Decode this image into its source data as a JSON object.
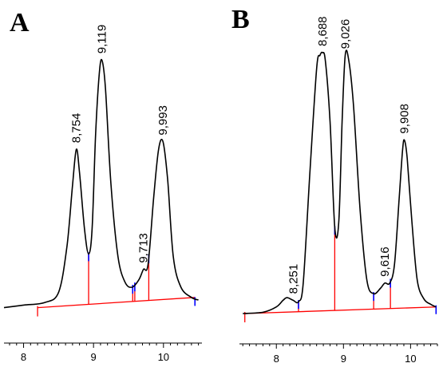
{
  "panels": [
    {
      "letter": "A",
      "chart_data": {
        "type": "line",
        "title": "",
        "xlabel": "",
        "ylabel": "",
        "xlim": [
          7.72,
          10.55
        ],
        "ylim": [
          0,
          1
        ],
        "xticks": [
          8,
          9,
          10
        ],
        "line_color": "#000000",
        "baseline_color": "#ff0000",
        "marker_color": "#0000ff",
        "series": [
          {
            "x": [
              7.72,
              8.0,
              8.3,
              8.5,
              8.62,
              8.7,
              8.754,
              8.8,
              8.87,
              8.93,
              8.98,
              9.03,
              9.08,
              9.119,
              9.17,
              9.25,
              9.35,
              9.45,
              9.55,
              9.65,
              9.713,
              9.78,
              9.86,
              9.93,
              9.993,
              10.06,
              10.14,
              10.25,
              10.4,
              10.5
            ],
            "y": [
              0.02,
              0.03,
              0.04,
              0.08,
              0.26,
              0.5,
              0.64,
              0.55,
              0.33,
              0.23,
              0.33,
              0.7,
              0.93,
              0.99,
              0.88,
              0.5,
              0.22,
              0.12,
              0.1,
              0.13,
              0.17,
              0.19,
              0.45,
              0.64,
              0.67,
              0.52,
              0.22,
              0.1,
              0.06,
              0.05
            ]
          }
        ],
        "peak_labels": [
          {
            "text": "8,754",
            "x": 8.754
          },
          {
            "text": "9,119",
            "x": 9.119
          },
          {
            "text": "9,713",
            "x": 9.713
          },
          {
            "text": "9,993",
            "x": 9.993
          }
        ],
        "baseline": [
          {
            "x": 8.2,
            "y": 0.02
          },
          {
            "x": 10.45,
            "y": 0.06
          }
        ],
        "boundary_markers": [
          8.2,
          8.93,
          9.56,
          9.59,
          9.79,
          10.45
        ]
      }
    },
    {
      "letter": "B",
      "chart_data": {
        "type": "line",
        "title": "",
        "xlabel": "",
        "ylabel": "",
        "xlim": [
          7.45,
          10.4
        ],
        "ylim": [
          0,
          1
        ],
        "xticks": [
          8,
          9,
          10
        ],
        "line_color": "#000000",
        "baseline_color": "#ff0000",
        "marker_color": "#0000ff",
        "series": [
          {
            "x": [
              7.5,
              7.8,
              8.0,
              8.1,
              8.16,
              8.251,
              8.33,
              8.4,
              8.5,
              8.6,
              8.65,
              8.688,
              8.73,
              8.8,
              8.87,
              8.93,
              8.98,
              9.026,
              9.08,
              9.15,
              9.25,
              9.35,
              9.45,
              9.55,
              9.616,
              9.69,
              9.76,
              9.83,
              9.88,
              9.908,
              9.95,
              10.02,
              10.1,
              10.2,
              10.3,
              10.38
            ],
            "y": [
              0.015,
              0.02,
              0.04,
              0.065,
              0.075,
              0.065,
              0.06,
              0.13,
              0.55,
              0.94,
              0.99,
              1.0,
              0.97,
              0.74,
              0.34,
              0.36,
              0.74,
              0.99,
              0.97,
              0.8,
              0.4,
              0.14,
              0.09,
              0.11,
              0.13,
              0.13,
              0.2,
              0.45,
              0.63,
              0.67,
              0.6,
              0.36,
              0.14,
              0.07,
              0.05,
              0.04
            ]
          }
        ],
        "peak_labels": [
          {
            "text": "8,251",
            "x": 8.251
          },
          {
            "text": "8,688",
            "x": 8.688
          },
          {
            "text": "9,026",
            "x": 9.026
          },
          {
            "text": "9,616",
            "x": 9.616
          },
          {
            "text": "9,908",
            "x": 9.908
          }
        ],
        "baseline": [
          {
            "x": 7.53,
            "y": 0.015
          },
          {
            "x": 10.38,
            "y": 0.04
          }
        ],
        "boundary_markers": [
          7.53,
          8.33,
          8.87,
          9.45,
          9.7,
          10.38
        ]
      }
    }
  ]
}
